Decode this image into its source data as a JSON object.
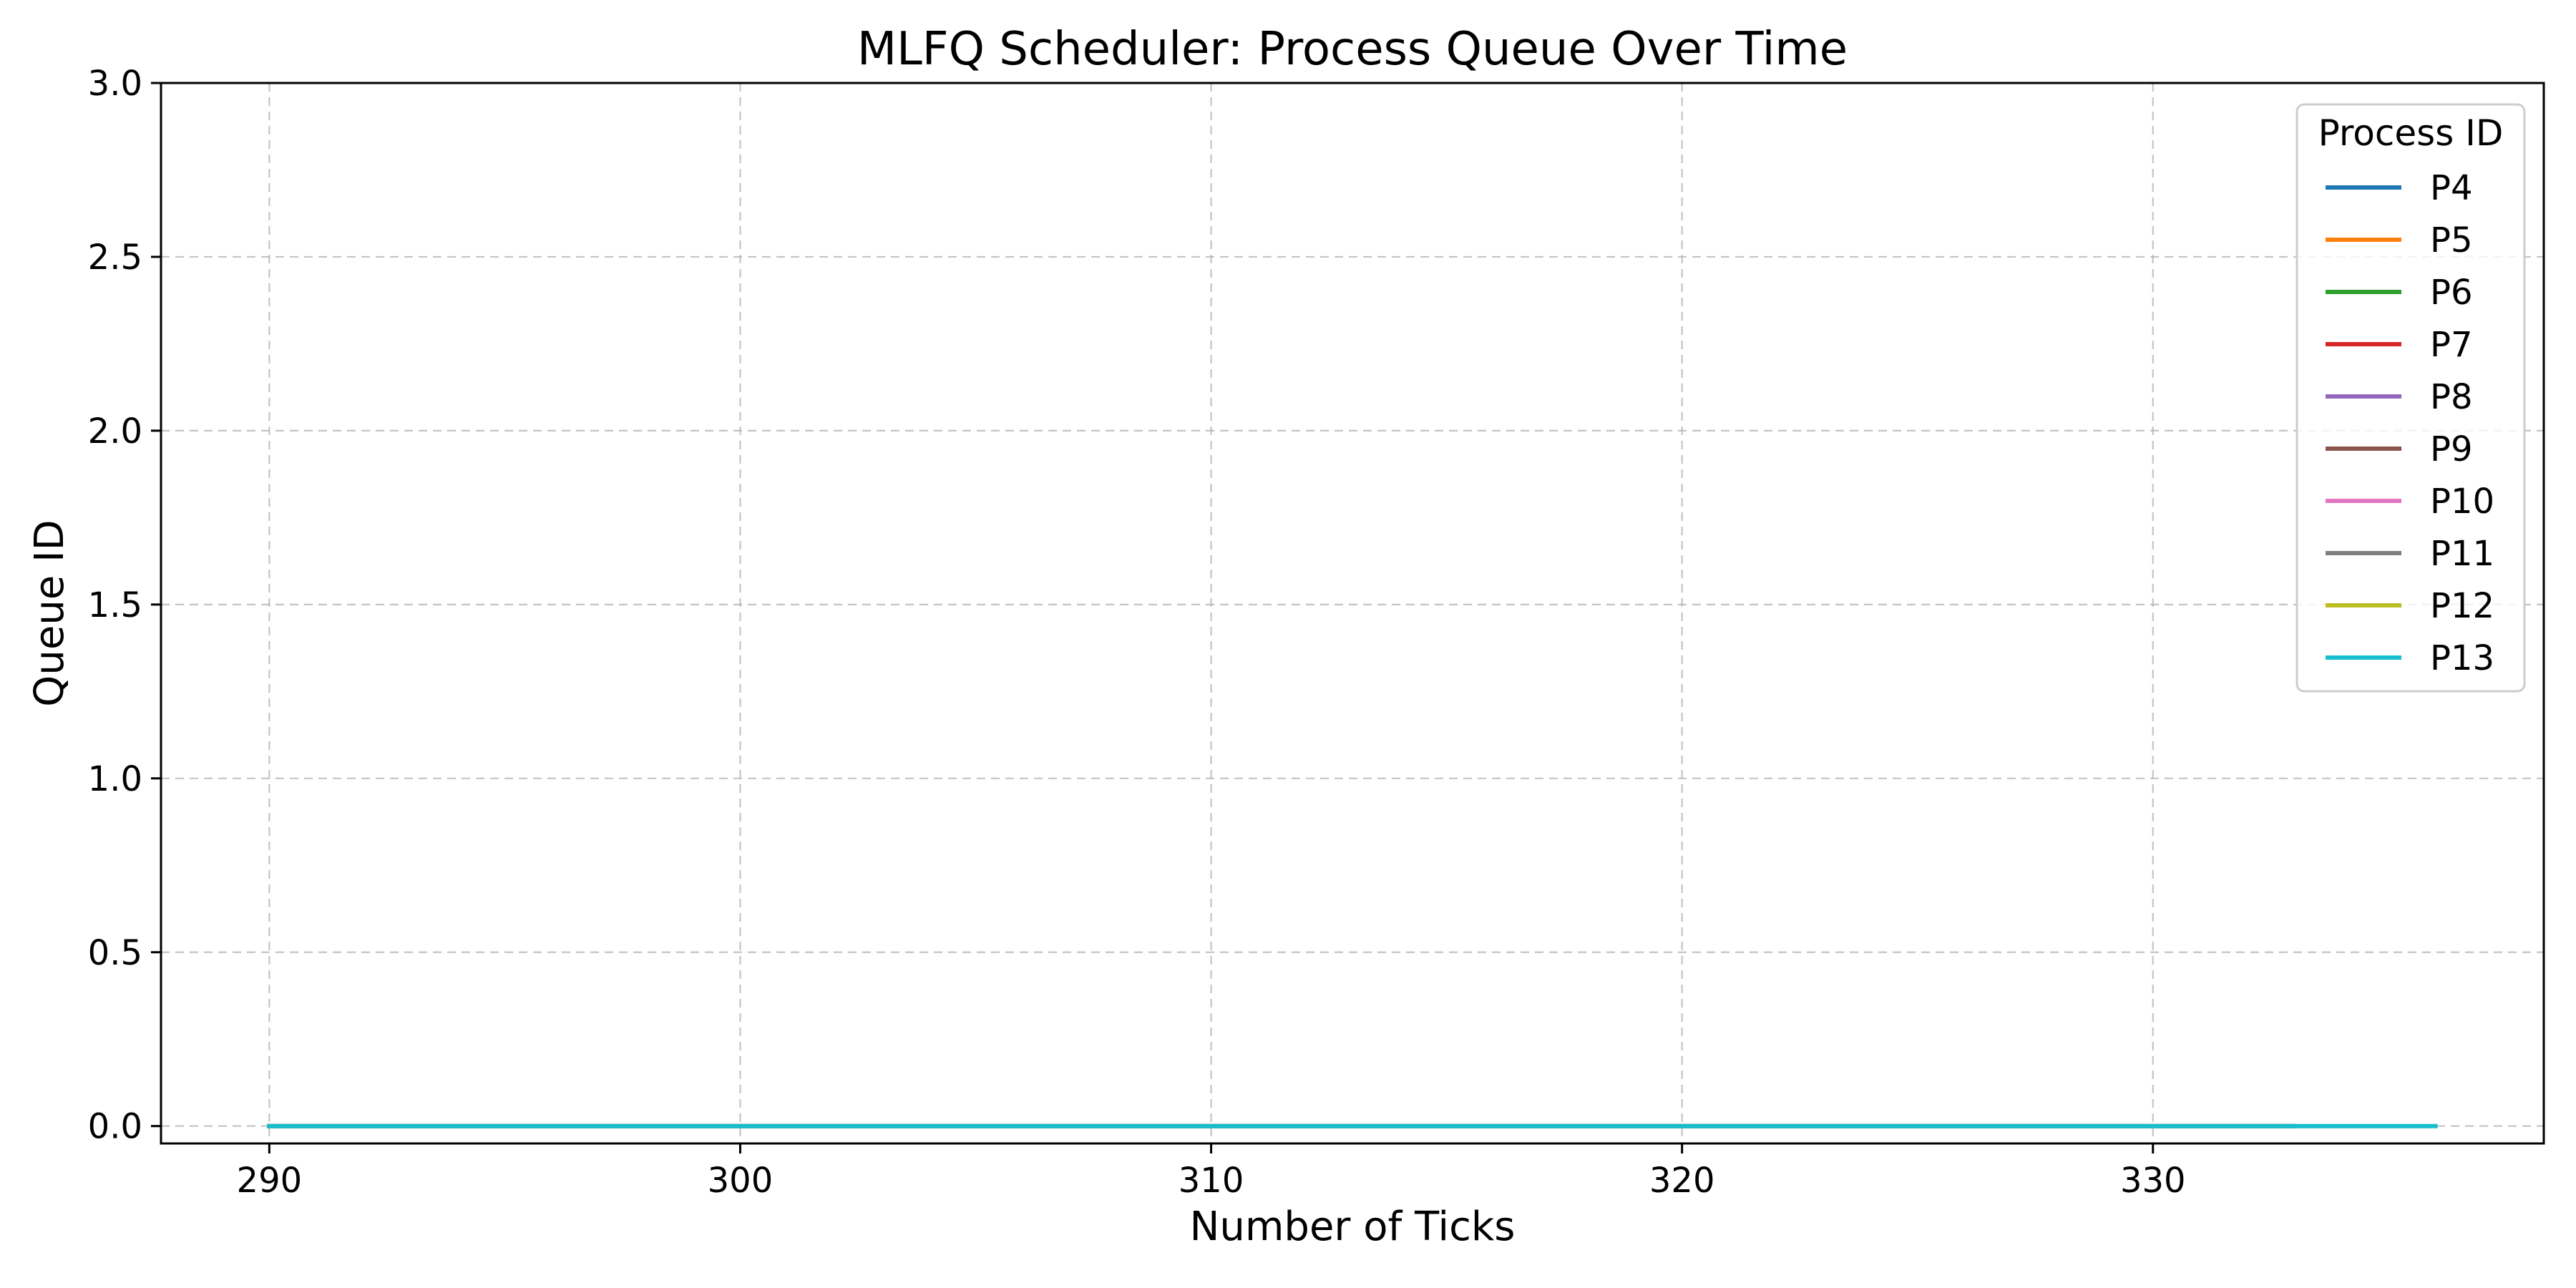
{
  "chart_data": {
    "type": "line",
    "title": "MLFQ Scheduler: Process Queue Over Time",
    "xlabel": "Number of Ticks",
    "ylabel": "Queue ID",
    "xlim": [
      287.7,
      338.3
    ],
    "ylim": [
      -0.05,
      3.0
    ],
    "xticks": [
      290,
      300,
      310,
      320,
      330
    ],
    "xtick_labels": [
      "290",
      "300",
      "310",
      "320",
      "330"
    ],
    "yticks": [
      0.0,
      0.5,
      1.0,
      1.5,
      2.0,
      2.5,
      3.0
    ],
    "ytick_labels": [
      "0.0",
      "0.5",
      "1.0",
      "1.5",
      "2.0",
      "2.5",
      "3.0"
    ],
    "grid": true,
    "legend": {
      "title": "Process ID",
      "position": "top-right"
    },
    "series": [
      {
        "name": "P4",
        "color": "#1f77b4",
        "x": [
          290,
          333
        ],
        "y": [
          0,
          0
        ]
      },
      {
        "name": "P5",
        "color": "#ff7f0e",
        "x": [
          290,
          333
        ],
        "y": [
          0,
          0
        ]
      },
      {
        "name": "P6",
        "color": "#2ca02c",
        "x": [
          290,
          333
        ],
        "y": [
          0,
          0
        ]
      },
      {
        "name": "P7",
        "color": "#d62728",
        "x": [
          290,
          333
        ],
        "y": [
          0,
          0
        ]
      },
      {
        "name": "P8",
        "color": "#9467bd",
        "x": [
          290,
          333
        ],
        "y": [
          0,
          0
        ]
      },
      {
        "name": "P9",
        "color": "#8c564b",
        "x": [
          290,
          333
        ],
        "y": [
          0,
          0
        ]
      },
      {
        "name": "P10",
        "color": "#e377c2",
        "x": [
          290,
          333
        ],
        "y": [
          0,
          0
        ]
      },
      {
        "name": "P11",
        "color": "#7f7f7f",
        "x": [
          290,
          333
        ],
        "y": [
          0,
          0
        ]
      },
      {
        "name": "P12",
        "color": "#bcbd22",
        "x": [
          290,
          333
        ],
        "y": [
          0,
          0
        ]
      },
      {
        "name": "P13",
        "color": "#17becf",
        "x": [
          290,
          336
        ],
        "y": [
          0,
          0
        ]
      }
    ]
  }
}
